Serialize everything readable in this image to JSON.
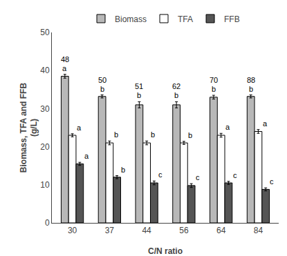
{
  "chart_data": {
    "type": "bar",
    "x_label": "C/N ratio",
    "y_label": "Biomass, TFA and FFB\n(g/L)",
    "categories": [
      "30",
      "37",
      "44",
      "56",
      "64",
      "84"
    ],
    "series": [
      {
        "name": "Biomass",
        "color": "#b8b8b8",
        "values": [
          38.5,
          33.2,
          31.0,
          31.0,
          33.0,
          33.2
        ],
        "errors": [
          0.5,
          0.4,
          0.8,
          0.8,
          0.5,
          0.4
        ],
        "letters": [
          "a",
          "b",
          "b",
          "b",
          "b",
          "b"
        ],
        "top_labels": [
          "48",
          "50",
          "51",
          "62",
          "70",
          "88"
        ]
      },
      {
        "name": "TFA",
        "color": "#ffffff",
        "values": [
          23.0,
          21.0,
          21.0,
          21.0,
          23.0,
          24.0
        ],
        "errors": [
          0.4,
          0.5,
          0.5,
          0.4,
          0.5,
          0.5
        ],
        "letters": [
          "a",
          "b",
          "b",
          "b",
          "a",
          "a"
        ]
      },
      {
        "name": "FFB",
        "color": "#555555",
        "values": [
          15.5,
          12.0,
          10.5,
          9.8,
          10.5,
          8.8
        ],
        "errors": [
          0.4,
          0.4,
          0.5,
          0.5,
          0.4,
          0.4
        ],
        "letters": [
          "a",
          "b",
          "c",
          "c",
          "c",
          "c"
        ]
      }
    ],
    "ylim": [
      0,
      50
    ],
    "yticks": [
      0,
      10,
      20,
      30,
      40,
      50
    ],
    "grid": false,
    "legend": "top"
  }
}
